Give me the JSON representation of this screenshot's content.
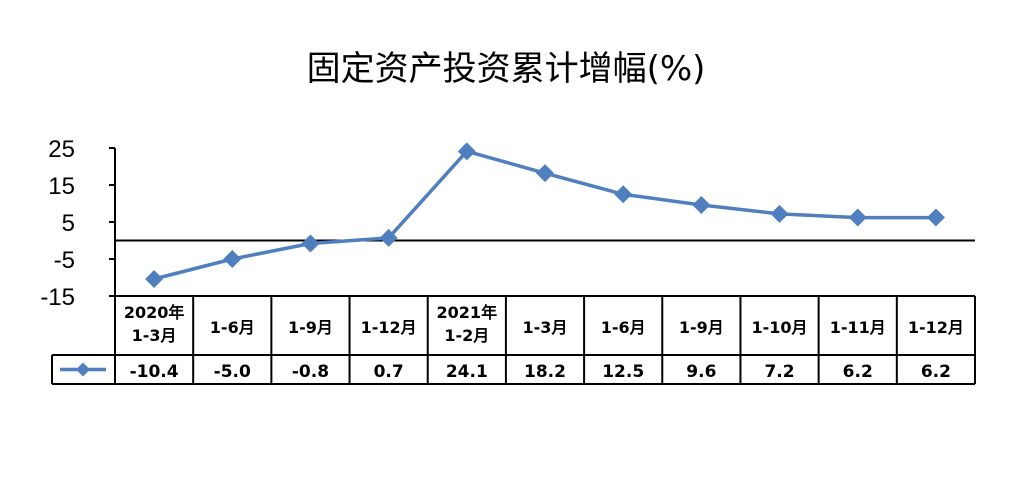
{
  "chart_data": {
    "type": "line",
    "title": "固定资产投资累计增幅(%)",
    "categories": [
      [
        "2020年",
        "1-3月"
      ],
      [
        "1-6月"
      ],
      [
        "1-9月"
      ],
      [
        "1-12月"
      ],
      [
        "2021年",
        "1-2月"
      ],
      [
        "1-3月"
      ],
      [
        "1-6月"
      ],
      [
        "1-9月"
      ],
      [
        "1-10月"
      ],
      [
        "1-11月"
      ],
      [
        "1-12月"
      ]
    ],
    "values": [
      -10.4,
      -5.0,
      -0.8,
      0.7,
      24.1,
      18.2,
      12.5,
      9.6,
      7.2,
      6.2,
      6.2
    ],
    "value_labels": [
      "-10.4",
      "-5.0",
      "-0.8",
      "0.7",
      "24.1",
      "18.2",
      "12.5",
      "9.6",
      "7.2",
      "6.2",
      "6.2"
    ],
    "y_ticks": [
      "25",
      "15",
      "5",
      "-5",
      "-15"
    ],
    "y_tick_values": [
      25,
      15,
      5,
      -5,
      -15
    ],
    "ylim": [
      -15,
      25
    ],
    "grid": false,
    "legend": "data-table",
    "marker": "diamond",
    "line_color": "#4F7FBE"
  }
}
